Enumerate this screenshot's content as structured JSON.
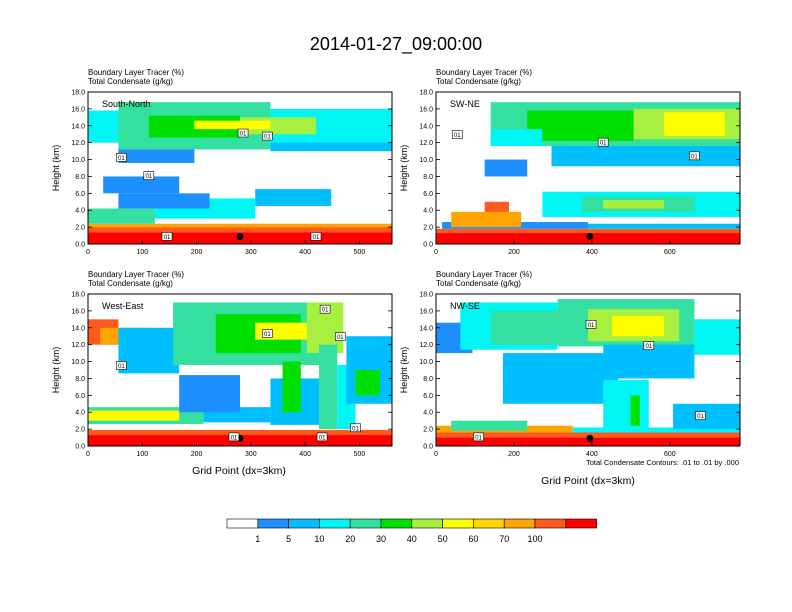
{
  "title": "2014-01-27_09:00:00",
  "ylabel": "Height (km)",
  "xlabel": "Grid Point (dx=3km)",
  "contour_note": "Total Condensate Contours: .01 to .01 by .000",
  "legend": {
    "colors": [
      "#ffffff",
      "#1e8fff",
      "#00bfff",
      "#00f5f5",
      "#33e0a0",
      "#00e000",
      "#a8f040",
      "#ffff00",
      "#ffd700",
      "#ffa500",
      "#ff5a1e",
      "#ff0000"
    ],
    "tick_labels": [
      "1",
      "5",
      "10",
      "20",
      "30",
      "40",
      "50",
      "60",
      "70",
      "100"
    ]
  },
  "chart_data": [
    {
      "type": "heatmap",
      "title_line1": "Boundary Layer Tracer   (%)",
      "title_line2": "Total Condensate   (g/kg)",
      "section_label": "South-North",
      "yticks": [
        "0.0",
        "2.0",
        "4.0",
        "6.0",
        "8.0",
        "10.0",
        "12.0",
        "14.0",
        "16.0",
        "18.0"
      ],
      "xticks": [
        "0",
        "100",
        "200",
        "300",
        "400",
        "500"
      ],
      "xlim": [
        0,
        560
      ],
      "ylim": [
        0,
        18
      ],
      "contour_labels": [
        "01",
        "01",
        "01",
        "01",
        "01",
        "01"
      ]
    },
    {
      "type": "heatmap",
      "title_line1": "Boundary Layer Tracer   (%)",
      "title_line2": "Total Condensate   (g/kg)",
      "section_label": "SW-NE",
      "yticks": [
        "0.0",
        "2.0",
        "4.0",
        "6.0",
        "8.0",
        "10.0",
        "12.0",
        "14.0",
        "16.0",
        "18.0"
      ],
      "xticks": [
        "0",
        "200",
        "400",
        "600"
      ],
      "xlim": [
        0,
        780
      ],
      "ylim": [
        0,
        18
      ],
      "contour_labels": [
        "01",
        "01",
        "01"
      ]
    },
    {
      "type": "heatmap",
      "title_line1": "Boundary Layer Tracer   (%)",
      "title_line2": "Total Condensate   (g/kg)",
      "section_label": "West-East",
      "yticks": [
        "0.0",
        "2.0",
        "4.0",
        "6.0",
        "8.0",
        "10.0",
        "12.0",
        "14.0",
        "16.0",
        "18.0"
      ],
      "xticks": [
        "0",
        "100",
        "200",
        "300",
        "400",
        "500"
      ],
      "xlim": [
        0,
        560
      ],
      "ylim": [
        0,
        18
      ],
      "contour_labels": [
        "01",
        "01",
        "01",
        "01",
        "01",
        "01",
        "01"
      ]
    },
    {
      "type": "heatmap",
      "title_line1": "Boundary Layer Tracer   (%)",
      "title_line2": "Total Condensate   (g/kg)",
      "section_label": "NW-SE",
      "yticks": [
        "0.0",
        "2.0",
        "4.0",
        "6.0",
        "8.0",
        "10.0",
        "12.0",
        "14.0",
        "16.0",
        "18.0"
      ],
      "xticks": [
        "0",
        "200",
        "400",
        "600"
      ],
      "xlim": [
        0,
        780
      ],
      "ylim": [
        0,
        18
      ],
      "contour_labels": [
        "01",
        "01",
        "01",
        "01"
      ]
    }
  ]
}
